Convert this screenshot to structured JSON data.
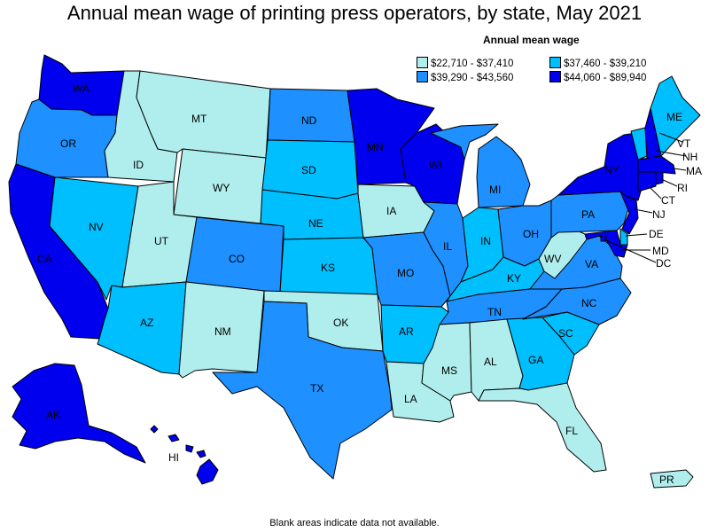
{
  "title": "Annual mean wage of printing press operators, by state, May 2021",
  "legend": {
    "title": "Annual mean wage",
    "items": [
      {
        "label": "$22,710 - $37,410",
        "color": "#b0eeee"
      },
      {
        "label": "$37,460 - $39,210",
        "color": "#00bfff"
      },
      {
        "label": "$39,290 - $43,560",
        "color": "#1e90ff"
      },
      {
        "label": "$44,060 - $89,940",
        "color": "#0000ee"
      }
    ]
  },
  "states": {
    "WA": {
      "label": "WA",
      "bin": 3
    },
    "OR": {
      "label": "OR",
      "bin": 2
    },
    "CA": {
      "label": "CA",
      "bin": 3
    },
    "ID": {
      "label": "ID",
      "bin": 0
    },
    "NV": {
      "label": "NV",
      "bin": 1
    },
    "MT": {
      "label": "MT",
      "bin": 0
    },
    "WY": {
      "label": "WY",
      "bin": 0
    },
    "UT": {
      "label": "UT",
      "bin": 0
    },
    "AZ": {
      "label": "AZ",
      "bin": 1
    },
    "CO": {
      "label": "CO",
      "bin": 2
    },
    "NM": {
      "label": "NM",
      "bin": 0
    },
    "ND": {
      "label": "ND",
      "bin": 2
    },
    "SD": {
      "label": "SD",
      "bin": 1
    },
    "NE": {
      "label": "NE",
      "bin": 1
    },
    "KS": {
      "label": "KS",
      "bin": 1
    },
    "OK": {
      "label": "OK",
      "bin": 0
    },
    "TX": {
      "label": "TX",
      "bin": 2
    },
    "MN": {
      "label": "MN",
      "bin": 3
    },
    "IA": {
      "label": "IA",
      "bin": 0
    },
    "MO": {
      "label": "MO",
      "bin": 2
    },
    "AR": {
      "label": "AR",
      "bin": 1
    },
    "LA": {
      "label": "LA",
      "bin": 0
    },
    "WI": {
      "label": "WI",
      "bin": 3
    },
    "IL": {
      "label": "IL",
      "bin": 2
    },
    "MI": {
      "label": "MI",
      "bin": 2
    },
    "IN": {
      "label": "IN",
      "bin": 1
    },
    "OH": {
      "label": "OH",
      "bin": 2
    },
    "KY": {
      "label": "KY",
      "bin": 1
    },
    "TN": {
      "label": "TN",
      "bin": 2
    },
    "MS": {
      "label": "MS",
      "bin": 0
    },
    "AL": {
      "label": "AL",
      "bin": 0
    },
    "GA": {
      "label": "GA",
      "bin": 1
    },
    "FL": {
      "label": "FL",
      "bin": 0
    },
    "SC": {
      "label": "SC",
      "bin": 1
    },
    "NC": {
      "label": "NC",
      "bin": 2
    },
    "VA": {
      "label": "VA",
      "bin": 2
    },
    "WV": {
      "label": "WV",
      "bin": 0
    },
    "PA": {
      "label": "PA",
      "bin": 2
    },
    "NY": {
      "label": "NY",
      "bin": 3
    },
    "NJ": {
      "label": "NJ",
      "bin": 3
    },
    "DE": {
      "label": "DE",
      "bin": 1
    },
    "MD": {
      "label": "MD",
      "bin": 3
    },
    "DC": {
      "label": "DC",
      "bin": 3
    },
    "VT": {
      "label": "VT",
      "bin": 1
    },
    "NH": {
      "label": "NH",
      "bin": 3
    },
    "ME": {
      "label": "ME",
      "bin": 1
    },
    "MA": {
      "label": "MA",
      "bin": 3
    },
    "CT": {
      "label": "CT",
      "bin": 3
    },
    "RI": {
      "label": "RI",
      "bin": 3
    },
    "AK": {
      "label": "AK",
      "bin": 3
    },
    "HI": {
      "label": "HI",
      "bin": 3
    },
    "PR": {
      "label": "PR",
      "bin": 0
    }
  },
  "footnote": "Blank areas indicate data not available."
}
